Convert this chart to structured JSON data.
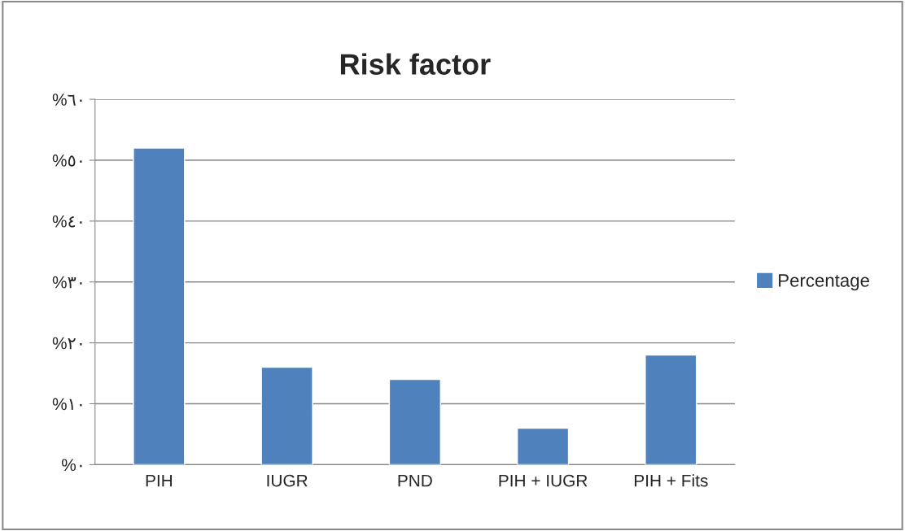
{
  "chart_data": {
    "type": "bar",
    "title": "Risk factor",
    "categories": [
      "PIH",
      "IUGR",
      "PND",
      "PIH + IUGR",
      "PIH + Fits"
    ],
    "series": [
      {
        "name": "Percentage",
        "color": "#4f81bd",
        "values": [
          52,
          16,
          14,
          6,
          18
        ]
      }
    ],
    "ylim": [
      0,
      60
    ],
    "yticks": [
      {
        "value": 0,
        "label": "%٠"
      },
      {
        "value": 10,
        "label": "%١٠"
      },
      {
        "value": 20,
        "label": "%٢٠"
      },
      {
        "value": 30,
        "label": "%٣٠"
      },
      {
        "value": 40,
        "label": "%٤٠"
      },
      {
        "value": 50,
        "label": "%٥٠"
      },
      {
        "value": 60,
        "label": "%٦٠"
      }
    ],
    "grid": "y",
    "legend": "right"
  }
}
